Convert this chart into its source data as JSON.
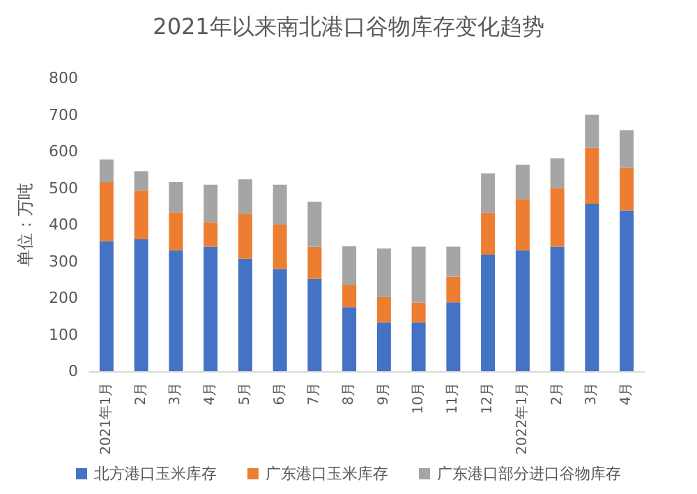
{
  "chart_data": {
    "type": "bar",
    "title": "2021年以来南北港口谷物库存变化趋势",
    "ylabel": "单位：万吨",
    "categories": [
      "2021年1月",
      "2月",
      "3月",
      "4月",
      "5月",
      "6月",
      "7月",
      "8月",
      "9月",
      "10月",
      "11月",
      "12月",
      "2022年1月",
      "2月",
      "3月",
      "4月"
    ],
    "series": [
      {
        "name": "北方港口玉米库存",
        "color": "#4472c4",
        "values": [
          355,
          360,
          330,
          340,
          307,
          279,
          252,
          175,
          133,
          133,
          188,
          318,
          330,
          340,
          457,
          439
        ]
      },
      {
        "name": "广东港口玉米库存",
        "color": "#ed7d31",
        "values": [
          161,
          133,
          104,
          67,
          123,
          121,
          88,
          61,
          70,
          54,
          70,
          115,
          140,
          160,
          153,
          116
        ]
      },
      {
        "name": "广东港口部分进口谷物库存",
        "color": "#a5a5a5",
        "values": [
          62,
          53,
          82,
          102,
          94,
          109,
          123,
          105,
          132,
          153,
          82,
          107,
          94,
          81,
          90,
          103
        ]
      }
    ],
    "stacked": true,
    "ylim": [
      0,
      800
    ],
    "yticks": [
      0,
      100,
      200,
      300,
      400,
      500,
      600,
      700,
      800
    ],
    "grid": false,
    "legend": "bottom"
  }
}
